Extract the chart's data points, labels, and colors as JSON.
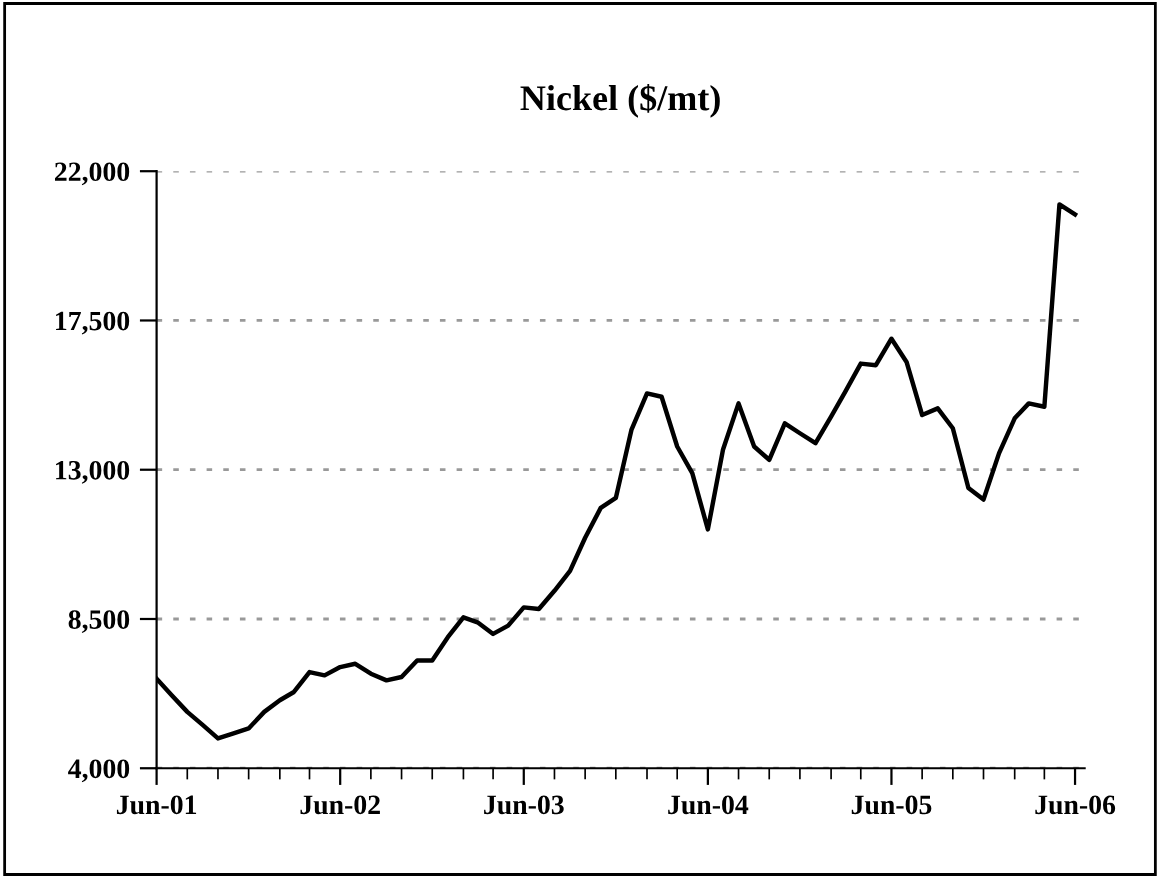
{
  "chart_data": {
    "type": "line",
    "title": "Nickel ($/mt)",
    "x": [
      "2001-06",
      "2001-07",
      "2001-08",
      "2001-09",
      "2001-10",
      "2001-11",
      "2001-12",
      "2002-01",
      "2002-02",
      "2002-03",
      "2002-04",
      "2002-05",
      "2002-06",
      "2002-07",
      "2002-08",
      "2002-09",
      "2002-10",
      "2002-11",
      "2002-12",
      "2003-01",
      "2003-02",
      "2003-03",
      "2003-04",
      "2003-05",
      "2003-06",
      "2003-07",
      "2003-08",
      "2003-09",
      "2003-10",
      "2003-11",
      "2003-12",
      "2004-01",
      "2004-02",
      "2004-03",
      "2004-04",
      "2004-05",
      "2004-06",
      "2004-07",
      "2004-08",
      "2004-09",
      "2004-10",
      "2004-11",
      "2004-12",
      "2005-01",
      "2005-02",
      "2005-03",
      "2005-04",
      "2005-05",
      "2005-06",
      "2005-07",
      "2005-08",
      "2005-09",
      "2005-10",
      "2005-11",
      "2005-12",
      "2006-01",
      "2006-02",
      "2006-03",
      "2006-04",
      "2006-05",
      "2006-06"
    ],
    "series": [
      {
        "color": "#000000",
        "values": [
          6700,
          6200,
          5700,
          5300,
          4900,
          5050,
          5200,
          5700,
          6050,
          6300,
          6900,
          6800,
          7050,
          7150,
          6850,
          6650,
          6750,
          7250,
          7250,
          7950,
          8550,
          8400,
          8050,
          8300,
          8850,
          8800,
          9350,
          9950,
          10950,
          11850,
          12150,
          14200,
          15300,
          15200,
          13700,
          12900,
          11200,
          13600,
          15000,
          13700,
          13300,
          14400,
          14100,
          13800,
          14600,
          15350,
          16200,
          16150,
          16950,
          16250,
          14650,
          14850,
          14250,
          12450,
          12100,
          13500,
          14550,
          15000,
          14900,
          21000,
          20700
        ]
      }
    ],
    "xlim": [
      "2001-06",
      "2006-06-20"
    ],
    "xticks": [
      {
        "value": "2001-06",
        "label": "Jun-01"
      },
      {
        "value": "2001-08",
        "label": null
      },
      {
        "value": "2001-10",
        "label": null
      },
      {
        "value": "2001-12",
        "label": null
      },
      {
        "value": "2002-02",
        "label": null
      },
      {
        "value": "2002-04",
        "label": null
      },
      {
        "value": "2002-06",
        "label": "Jun-02"
      },
      {
        "value": "2002-08",
        "label": null
      },
      {
        "value": "2002-10",
        "label": null
      },
      {
        "value": "2002-12",
        "label": null
      },
      {
        "value": "2003-02",
        "label": null
      },
      {
        "value": "2003-04",
        "label": null
      },
      {
        "value": "2003-06",
        "label": "Jun-03"
      },
      {
        "value": "2003-08",
        "label": null
      },
      {
        "value": "2003-10",
        "label": null
      },
      {
        "value": "2003-12",
        "label": null
      },
      {
        "value": "2004-02",
        "label": null
      },
      {
        "value": "2004-04",
        "label": null
      },
      {
        "value": "2004-06",
        "label": "Jun-04"
      },
      {
        "value": "2004-08",
        "label": null
      },
      {
        "value": "2004-10",
        "label": null
      },
      {
        "value": "2004-12",
        "label": null
      },
      {
        "value": "2005-02",
        "label": null
      },
      {
        "value": "2005-04",
        "label": null
      },
      {
        "value": "2005-06",
        "label": "Jun-05"
      },
      {
        "value": "2005-08",
        "label": null
      },
      {
        "value": "2005-10",
        "label": null
      },
      {
        "value": "2005-12",
        "label": null
      },
      {
        "value": "2006-02",
        "label": null
      },
      {
        "value": "2006-04",
        "label": null
      },
      {
        "value": "2006-06",
        "label": "Jun-06"
      }
    ],
    "ylim": [
      4000,
      22000
    ],
    "yticks": [
      {
        "value": 4000,
        "label": "4,000"
      },
      {
        "value": 8500,
        "label": "8,500"
      },
      {
        "value": 13000,
        "label": "13,000"
      },
      {
        "value": 17500,
        "label": "17,500"
      },
      {
        "value": 22000,
        "label": "22,000"
      }
    ],
    "grid": "y",
    "legend": false,
    "marker": "none",
    "line_style": "solid"
  }
}
